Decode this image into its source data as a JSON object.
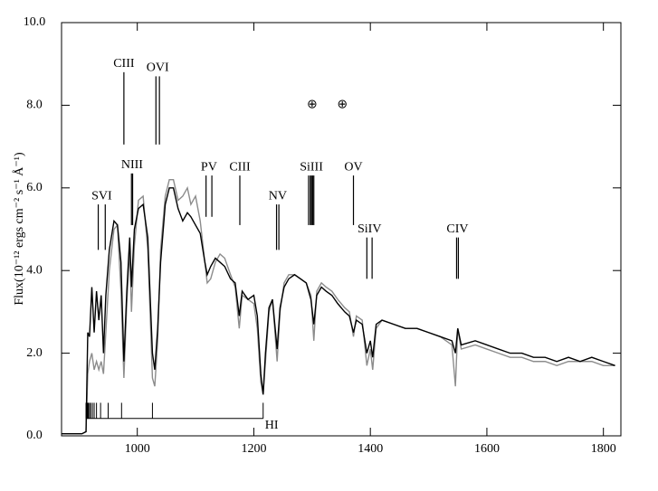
{
  "chart_data": {
    "type": "line",
    "y_label": "Flux(10⁻¹² ergs cm⁻² s⁻¹ Å⁻¹)",
    "xlim": [
      870,
      1830
    ],
    "xticks": [
      1000,
      1200,
      1400,
      1600,
      1800
    ],
    "ylim": [
      0,
      10
    ],
    "yticks": [
      {
        "value": 0,
        "label": "0.0"
      },
      {
        "value": 2,
        "label": "2.0"
      },
      {
        "value": 4,
        "label": "4.0"
      },
      {
        "value": 6,
        "label": "6.0"
      },
      {
        "value": 8,
        "label": "8.0"
      },
      {
        "value": 10,
        "label": "10.0"
      }
    ],
    "x": [
      870,
      905,
      912,
      915,
      918,
      922,
      926,
      930,
      934,
      938,
      942,
      946,
      952,
      960,
      966,
      972,
      977,
      982,
      987,
      990,
      995,
      1002,
      1010,
      1018,
      1026,
      1030,
      1035,
      1040,
      1048,
      1055,
      1062,
      1070,
      1078,
      1086,
      1092,
      1100,
      1108,
      1116,
      1120,
      1126,
      1134,
      1142,
      1150,
      1160,
      1168,
      1175,
      1180,
      1190,
      1200,
      1206,
      1212,
      1216,
      1220,
      1226,
      1232,
      1240,
      1245,
      1252,
      1260,
      1270,
      1280,
      1290,
      1298,
      1303,
      1308,
      1316,
      1324,
      1334,
      1344,
      1356,
      1364,
      1371,
      1376,
      1386,
      1394,
      1400,
      1404,
      1410,
      1420,
      1440,
      1460,
      1480,
      1500,
      1520,
      1540,
      1546,
      1550,
      1556,
      1580,
      1600,
      1620,
      1640,
      1660,
      1680,
      1700,
      1720,
      1740,
      1760,
      1780,
      1800,
      1820
    ],
    "series": [
      {
        "color": "#8c8c8c",
        "values": [
          0.05,
          0.05,
          0.1,
          1.5,
          1.8,
          2.0,
          1.6,
          1.8,
          1.6,
          1.8,
          1.5,
          2.5,
          4.0,
          5.0,
          5.1,
          3.5,
          1.4,
          3.2,
          4.5,
          3.0,
          4.6,
          5.7,
          5.8,
          4.5,
          1.4,
          1.2,
          2.3,
          4.5,
          5.8,
          6.2,
          6.2,
          5.7,
          5.8,
          6.0,
          5.6,
          5.8,
          5.2,
          4.2,
          3.7,
          3.8,
          4.2,
          4.4,
          4.3,
          3.9,
          3.6,
          2.6,
          3.4,
          3.3,
          3.2,
          2.6,
          1.3,
          1.0,
          1.8,
          3.0,
          3.3,
          1.8,
          3.0,
          3.7,
          3.9,
          3.9,
          3.8,
          3.7,
          3.4,
          2.3,
          3.5,
          3.7,
          3.6,
          3.5,
          3.3,
          3.1,
          3.0,
          2.4,
          2.9,
          2.8,
          1.7,
          2.1,
          1.6,
          2.6,
          2.8,
          2.7,
          2.6,
          2.6,
          2.5,
          2.4,
          2.2,
          1.2,
          2.6,
          2.1,
          2.2,
          2.1,
          2.0,
          1.9,
          1.9,
          1.8,
          1.8,
          1.7,
          1.8,
          1.8,
          1.8,
          1.7,
          1.7
        ]
      },
      {
        "color": "#000000",
        "values": [
          0.05,
          0.05,
          0.1,
          2.5,
          2.4,
          3.6,
          2.5,
          3.5,
          2.8,
          3.4,
          2.0,
          3.4,
          4.5,
          5.2,
          5.1,
          4.2,
          1.8,
          3.5,
          4.8,
          3.6,
          5.0,
          5.5,
          5.6,
          4.8,
          2.0,
          1.6,
          2.6,
          4.2,
          5.6,
          6.0,
          6.0,
          5.5,
          5.2,
          5.4,
          5.3,
          5.1,
          4.9,
          4.2,
          3.9,
          4.1,
          4.3,
          4.2,
          4.1,
          3.8,
          3.7,
          2.9,
          3.5,
          3.3,
          3.4,
          2.9,
          1.5,
          1.0,
          2.0,
          3.1,
          3.3,
          2.1,
          3.1,
          3.6,
          3.8,
          3.9,
          3.8,
          3.7,
          3.3,
          2.7,
          3.4,
          3.6,
          3.5,
          3.4,
          3.2,
          3.0,
          2.9,
          2.5,
          2.8,
          2.7,
          2.0,
          2.3,
          1.9,
          2.7,
          2.8,
          2.7,
          2.6,
          2.6,
          2.5,
          2.4,
          2.3,
          2.0,
          2.6,
          2.2,
          2.3,
          2.2,
          2.1,
          2.0,
          2.0,
          1.9,
          1.9,
          1.8,
          1.9,
          1.8,
          1.9,
          1.8,
          1.7
        ]
      }
    ],
    "line_ids": [
      {
        "label": "SVI",
        "wavelengths": [
          933,
          945
        ],
        "y_range": [
          4.5,
          5.6
        ]
      },
      {
        "label": "CIII",
        "wavelengths": [
          977
        ],
        "y_range": [
          7.05,
          8.8
        ]
      },
      {
        "label": "NIII",
        "wavelengths": [
          990,
          992
        ],
        "y_range": [
          5.1,
          6.35
        ]
      },
      {
        "label": "OVI",
        "wavelengths": [
          1032,
          1038
        ],
        "y_range": [
          7.05,
          8.7
        ]
      },
      {
        "label": "PV",
        "wavelengths": [
          1118,
          1128
        ],
        "y_range": [
          5.3,
          6.3
        ]
      },
      {
        "label": "CIII",
        "wavelengths": [
          1176
        ],
        "y_range": [
          5.1,
          6.3
        ]
      },
      {
        "label": "NV",
        "wavelengths": [
          1239,
          1243
        ],
        "y_range": [
          4.5,
          5.6
        ]
      },
      {
        "label": "SiIII",
        "wavelengths": [
          1294,
          1297,
          1299,
          1301,
          1303
        ],
        "y_range": [
          5.1,
          6.3
        ]
      },
      {
        "label": "OV",
        "wavelengths": [
          1371
        ],
        "y_range": [
          5.1,
          6.3
        ]
      },
      {
        "label": "SiIV",
        "wavelengths": [
          1394,
          1403
        ],
        "y_range": [
          3.8,
          4.8
        ]
      },
      {
        "label": "CIV",
        "wavelengths": [
          1548,
          1551
        ],
        "y_range": [
          3.8,
          4.8
        ]
      }
    ],
    "earth_marks": [
      {
        "label": "⊕",
        "x": 1300,
        "y": 8.0
      },
      {
        "label": "⊕",
        "x": 1352,
        "y": 8.0
      }
    ],
    "lyman": {
      "label": "HI",
      "wavelengths": [
        912,
        913,
        914,
        915,
        916,
        918,
        920,
        923,
        926,
        930,
        937,
        950,
        973,
        1026,
        1216
      ],
      "y_range": [
        0.42,
        0.8
      ]
    }
  }
}
